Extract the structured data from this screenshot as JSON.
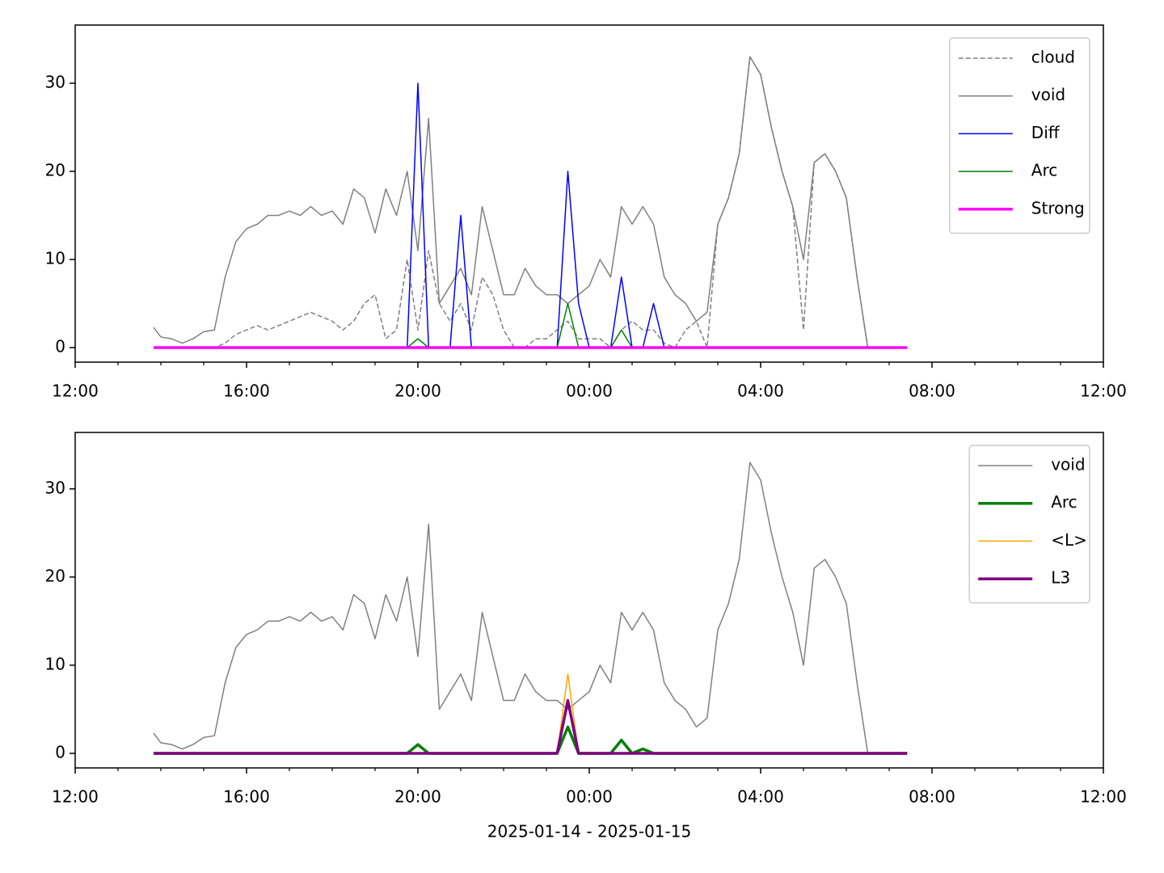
{
  "chart_data": [
    {
      "type": "line",
      "x": [
        1.83,
        2,
        2.25,
        2.5,
        2.75,
        3,
        3.25,
        3.5,
        3.75,
        4,
        4.25,
        4.5,
        4.75,
        5,
        5.25,
        5.5,
        5.75,
        6,
        6.25,
        6.5,
        6.75,
        7,
        7.25,
        7.5,
        7.75,
        8,
        8.25,
        8.5,
        8.75,
        9,
        9.25,
        9.5,
        9.75,
        10,
        10.25,
        10.5,
        10.75,
        11,
        11.25,
        11.5,
        11.75,
        12,
        12.25,
        12.5,
        12.75,
        13,
        13.25,
        13.5,
        13.75,
        14,
        14.25,
        14.5,
        14.75,
        15,
        15.25,
        15.5,
        15.75,
        16,
        16.25,
        16.5,
        16.75,
        17,
        17.25,
        17.5,
        17.75,
        18,
        18.25,
        18.5,
        18.75,
        19,
        19.25,
        19.42
      ],
      "xlim": [
        0,
        24
      ],
      "xticks": [
        {
          "value": 0,
          "label": "12:00"
        },
        {
          "value": 4,
          "label": "16:00"
        },
        {
          "value": 8,
          "label": "20:00"
        },
        {
          "value": 12,
          "label": "00:00"
        },
        {
          "value": 16,
          "label": "04:00"
        },
        {
          "value": 20,
          "label": "08:00"
        },
        {
          "value": 24,
          "label": "12:00"
        }
      ],
      "xminorticks": [
        1,
        2,
        3,
        5,
        6,
        7,
        9,
        10,
        11,
        13,
        14,
        15,
        17,
        18,
        19,
        21,
        22,
        23
      ],
      "ylim": [
        -1.65,
        36.6
      ],
      "yticks": [
        0,
        10,
        20,
        30
      ],
      "legend": "upper right",
      "series": [
        {
          "name": "cloud",
          "color": "#808080",
          "linestyle": "dashed",
          "linewidth": 1.5,
          "values": [
            0,
            0,
            0,
            0,
            0,
            0,
            0,
            0.5,
            1.5,
            2,
            2.5,
            2,
            2.5,
            3,
            3.5,
            4,
            3.5,
            3,
            2,
            3,
            5,
            6,
            1,
            2,
            10,
            2,
            11,
            5,
            3,
            5,
            2,
            8,
            6,
            2,
            0,
            0,
            1,
            1,
            2,
            3,
            1,
            1,
            1,
            0,
            2,
            3,
            2,
            2,
            0.5,
            0,
            2,
            3,
            0,
            14,
            17,
            22,
            33,
            31,
            25,
            20,
            16,
            2,
            21,
            22,
            20,
            17,
            8,
            0,
            0,
            0,
            0,
            0
          ]
        },
        {
          "name": "void",
          "color": "#808080",
          "linestyle": "solid",
          "linewidth": 1.5,
          "values": [
            2.3,
            1.2,
            1,
            0.5,
            1,
            1.8,
            2,
            8,
            12,
            13.5,
            14,
            15,
            15,
            15.5,
            15,
            16,
            15,
            15.5,
            14,
            18,
            17,
            13,
            18,
            15,
            20,
            11,
            26,
            5,
            7,
            9,
            6,
            16,
            11,
            6,
            6,
            9,
            7,
            6,
            6,
            5,
            6,
            7,
            10,
            8,
            16,
            14,
            16,
            14,
            8,
            6,
            5,
            3,
            4,
            14,
            17,
            22,
            33,
            31,
            25,
            20,
            16,
            10,
            21,
            22,
            20,
            17,
            8,
            0,
            0,
            0,
            0,
            0
          ]
        },
        {
          "name": "Diff",
          "color": "#0000ff",
          "linestyle": "solid",
          "linewidth": 1.5,
          "values": [
            0,
            0,
            0,
            0,
            0,
            0,
            0,
            0,
            0,
            0,
            0,
            0,
            0,
            0,
            0,
            0,
            0,
            0,
            0,
            0,
            0,
            0,
            0,
            0,
            0,
            30,
            0,
            0,
            0,
            15,
            0,
            0,
            0,
            0,
            0,
            0,
            0,
            0,
            0,
            20,
            5,
            0,
            0,
            0,
            8,
            0,
            0,
            5,
            0,
            0,
            0,
            0,
            0,
            0,
            0,
            0,
            0,
            0,
            0,
            0,
            0,
            0,
            0,
            0,
            0,
            0,
            0,
            0,
            0,
            0,
            0,
            0
          ]
        },
        {
          "name": "Arc",
          "color": "#008000",
          "linestyle": "solid",
          "linewidth": 1.5,
          "values": [
            0,
            0,
            0,
            0,
            0,
            0,
            0,
            0,
            0,
            0,
            0,
            0,
            0,
            0,
            0,
            0,
            0,
            0,
            0,
            0,
            0,
            0,
            0,
            0,
            0,
            1,
            0,
            0,
            0,
            0,
            0,
            0,
            0,
            0,
            0,
            0,
            0,
            0,
            0,
            5,
            0,
            0,
            0,
            0,
            2,
            0,
            0,
            0,
            0,
            0,
            0,
            0,
            0,
            0,
            0,
            0,
            0,
            0,
            0,
            0,
            0,
            0,
            0,
            0,
            0,
            0,
            0,
            0,
            0,
            0,
            0,
            0
          ]
        },
        {
          "name": "Strong",
          "color": "#ff00ff",
          "linestyle": "solid",
          "linewidth": 3.5,
          "values": [
            0,
            0,
            0,
            0,
            0,
            0,
            0,
            0,
            0,
            0,
            0,
            0,
            0,
            0,
            0,
            0,
            0,
            0,
            0,
            0,
            0,
            0,
            0,
            0,
            0,
            0,
            0,
            0,
            0,
            0,
            0,
            0,
            0,
            0,
            0,
            0,
            0,
            0,
            0,
            0,
            0,
            0,
            0,
            0,
            0,
            0,
            0,
            0,
            0,
            0,
            0,
            0,
            0,
            0,
            0,
            0,
            0,
            0,
            0,
            0,
            0,
            0,
            0,
            0,
            0,
            0,
            0,
            0,
            0,
            0,
            0,
            0
          ]
        }
      ]
    },
    {
      "type": "line",
      "x": [
        1.83,
        2,
        2.25,
        2.5,
        2.75,
        3,
        3.25,
        3.5,
        3.75,
        4,
        4.25,
        4.5,
        4.75,
        5,
        5.25,
        5.5,
        5.75,
        6,
        6.25,
        6.5,
        6.75,
        7,
        7.25,
        7.5,
        7.75,
        8,
        8.25,
        8.5,
        8.75,
        9,
        9.25,
        9.5,
        9.75,
        10,
        10.25,
        10.5,
        10.75,
        11,
        11.25,
        11.5,
        11.75,
        12,
        12.25,
        12.5,
        12.75,
        13,
        13.25,
        13.5,
        13.75,
        14,
        14.25,
        14.5,
        14.75,
        15,
        15.25,
        15.5,
        15.75,
        16,
        16.25,
        16.5,
        16.75,
        17,
        17.25,
        17.5,
        17.75,
        18,
        18.25,
        18.5,
        18.75,
        19,
        19.25,
        19.42
      ],
      "xlim": [
        0,
        24
      ],
      "xticks": [
        {
          "value": 0,
          "label": "12:00"
        },
        {
          "value": 4,
          "label": "16:00"
        },
        {
          "value": 8,
          "label": "20:00"
        },
        {
          "value": 12,
          "label": "00:00"
        },
        {
          "value": 16,
          "label": "04:00"
        },
        {
          "value": 20,
          "label": "08:00"
        },
        {
          "value": 24,
          "label": "12:00"
        }
      ],
      "xminorticks": [
        1,
        2,
        3,
        5,
        6,
        7,
        9,
        10,
        11,
        13,
        14,
        15,
        17,
        18,
        19,
        21,
        22,
        23
      ],
      "xlabel": "2025-01-14 - 2025-01-15",
      "ylim": [
        -1.65,
        36.4
      ],
      "yticks": [
        0,
        10,
        20,
        30
      ],
      "legend": "upper right",
      "series": [
        {
          "name": "void",
          "color": "#808080",
          "linestyle": "solid",
          "linewidth": 1.5,
          "values": [
            2.3,
            1.2,
            1,
            0.5,
            1,
            1.8,
            2,
            8,
            12,
            13.5,
            14,
            15,
            15,
            15.5,
            15,
            16,
            15,
            15.5,
            14,
            18,
            17,
            13,
            18,
            15,
            20,
            11,
            26,
            5,
            7,
            9,
            6,
            16,
            11,
            6,
            6,
            9,
            7,
            6,
            6,
            5,
            6,
            7,
            10,
            8,
            16,
            14,
            16,
            14,
            8,
            6,
            5,
            3,
            4,
            14,
            17,
            22,
            33,
            31,
            25,
            20,
            16,
            10,
            21,
            22,
            20,
            17,
            8,
            0,
            0,
            0,
            0,
            0
          ]
        },
        {
          "name": "Arc",
          "color": "#008000",
          "linestyle": "solid",
          "linewidth": 3.5,
          "values": [
            0,
            0,
            0,
            0,
            0,
            0,
            0,
            0,
            0,
            0,
            0,
            0,
            0,
            0,
            0,
            0,
            0,
            0,
            0,
            0,
            0,
            0,
            0,
            0,
            0,
            1,
            0,
            0,
            0,
            0,
            0,
            0,
            0,
            0,
            0,
            0,
            0,
            0,
            0,
            3,
            0,
            0,
            0,
            0,
            1.5,
            0,
            0.5,
            0,
            0,
            0,
            0,
            0,
            0,
            0,
            0,
            0,
            0,
            0,
            0,
            0,
            0,
            0,
            0,
            0,
            0,
            0,
            0,
            0,
            0,
            0,
            0,
            0
          ]
        },
        {
          "name": "<L>",
          "color": "#ffa500",
          "linestyle": "solid",
          "linewidth": 1.5,
          "values": [
            0,
            0,
            0,
            0,
            0,
            0,
            0,
            0,
            0,
            0,
            0,
            0,
            0,
            0,
            0,
            0,
            0,
            0,
            0,
            0,
            0,
            0,
            0,
            0,
            0,
            0,
            0,
            0,
            0,
            0,
            0,
            0,
            0,
            0,
            0,
            0,
            0,
            0,
            0,
            9,
            0,
            0,
            0,
            0,
            0,
            0,
            0,
            0,
            0,
            0,
            0,
            0,
            0,
            0,
            0,
            0,
            0,
            0,
            0,
            0,
            0,
            0,
            0,
            0,
            0,
            0,
            0,
            0,
            0,
            0,
            0,
            0
          ]
        },
        {
          "name": "L3",
          "color": "#800080",
          "linestyle": "solid",
          "linewidth": 3.5,
          "values": [
            0,
            0,
            0,
            0,
            0,
            0,
            0,
            0,
            0,
            0,
            0,
            0,
            0,
            0,
            0,
            0,
            0,
            0,
            0,
            0,
            0,
            0,
            0,
            0,
            0,
            0,
            0,
            0,
            0,
            0,
            0,
            0,
            0,
            0,
            0,
            0,
            0,
            0,
            0,
            6,
            0,
            0,
            0,
            0,
            0,
            0,
            0,
            0,
            0,
            0,
            0,
            0,
            0,
            0,
            0,
            0,
            0,
            0,
            0,
            0,
            0,
            0,
            0,
            0,
            0,
            0,
            0,
            0,
            0,
            0,
            0,
            0
          ]
        }
      ]
    }
  ]
}
